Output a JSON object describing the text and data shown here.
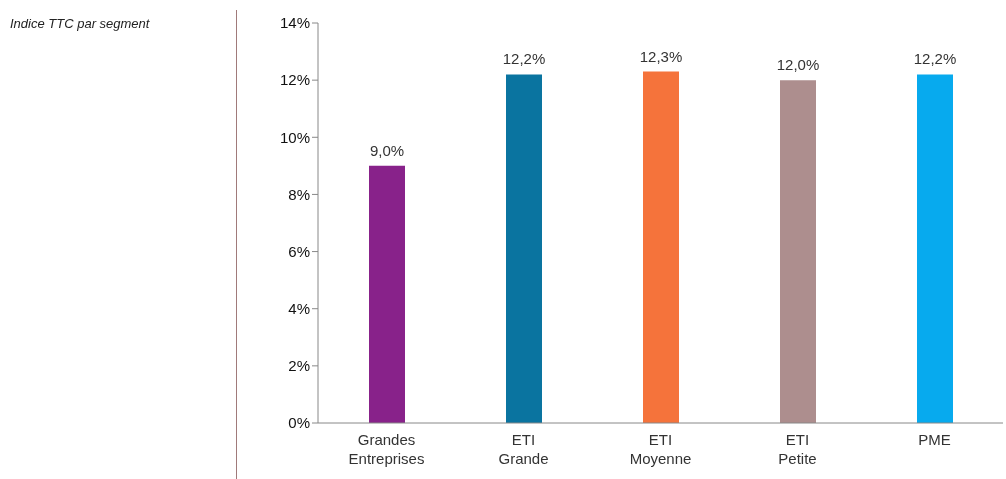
{
  "chart_data": {
    "type": "bar",
    "title": "Indice TTC par segment",
    "categories": [
      "Grandes\nEntreprises",
      "ETI\nGrande",
      "ETI\nMoyenne",
      "ETI\nPetite",
      "PME"
    ],
    "values": [
      9.0,
      12.2,
      12.3,
      12.0,
      12.2
    ],
    "colors": [
      "#88228a",
      "#0a74a0",
      "#f5733b",
      "#ad8e8e",
      "#07aaee"
    ],
    "value_labels": [
      "9,0%",
      "12,2%",
      "12,3%",
      "12,0%",
      "12,2%"
    ],
    "ylim": [
      0,
      14
    ],
    "yticks": [
      {
        "value": 0,
        "label": "0%"
      },
      {
        "value": 2,
        "label": "2%"
      },
      {
        "value": 4,
        "label": "4%"
      },
      {
        "value": 6,
        "label": "6%"
      },
      {
        "value": 8,
        "label": "8%"
      },
      {
        "value": 10,
        "label": "10%"
      },
      {
        "value": 12,
        "label": "12%"
      },
      {
        "value": 14,
        "label": "14%"
      }
    ],
    "grid": false,
    "legend": false
  }
}
